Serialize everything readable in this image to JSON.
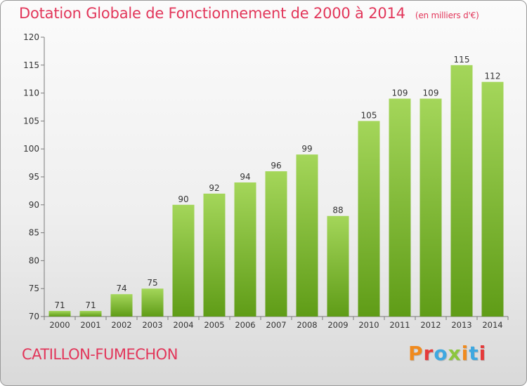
{
  "page": {
    "title": "Dotation Globale de Fonctionnement de 2000 à 2014",
    "unit": "(en milliers d'€)",
    "commune": "CATILLON-FUMECHON",
    "brand": "Proxiti"
  },
  "colors": {
    "title": "#e2365a",
    "bar_light": "#a4d65a",
    "bar_dark": "#5f9c17",
    "brand_letters": [
      "#f08a1e",
      "#e53a3a",
      "#3ea8e0",
      "#8cc63f",
      "#f08a1e",
      "#3ea8e0",
      "#e53a3a"
    ]
  },
  "chart_data": {
    "type": "bar",
    "title": "Dotation Globale de Fonctionnement de 2000 à 2014",
    "subtitle": "(en milliers d'€)",
    "xlabel": "",
    "ylabel": "",
    "categories": [
      "2000",
      "2001",
      "2002",
      "2003",
      "2004",
      "2005",
      "2006",
      "2007",
      "2008",
      "2009",
      "2010",
      "2011",
      "2012",
      "2013",
      "2014"
    ],
    "values": [
      71,
      71,
      74,
      75,
      90,
      92,
      94,
      96,
      99,
      88,
      105,
      109,
      109,
      115,
      112
    ],
    "ylim": [
      70,
      120
    ],
    "yticks": [
      70,
      75,
      80,
      85,
      90,
      95,
      100,
      105,
      110,
      115,
      120
    ],
    "grid": false,
    "data_labels": true
  }
}
